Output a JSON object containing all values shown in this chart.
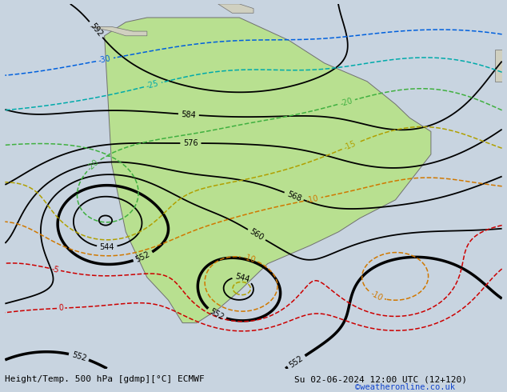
{
  "bottom_left_text": "Height/Temp. 500 hPa [gdmp][°C] ECMWF",
  "bottom_right_text": "Su 02-06-2024 12:00 UTC (12+120)",
  "copyright_text": "©weatheronline.co.uk",
  "bg_color": "#c8d4e0",
  "land_sa_color": "#b8e090",
  "land_other_color": "#d0d0c0",
  "figsize": [
    6.34,
    4.9
  ],
  "dpi": 100
}
